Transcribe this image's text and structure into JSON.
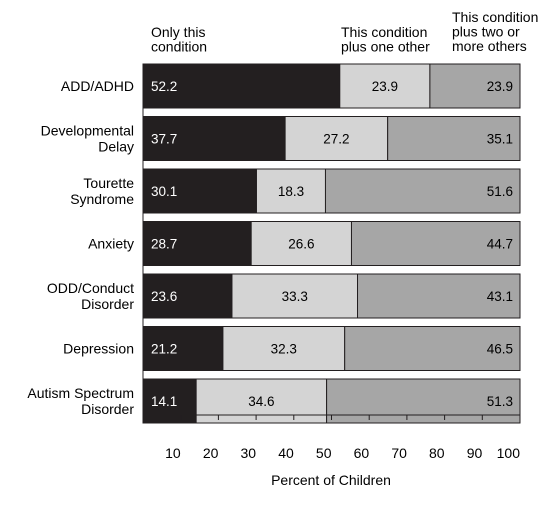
{
  "chart_data": {
    "type": "bar",
    "orientation": "horizontal",
    "stacked": true,
    "categories": [
      "ADD/ADHD",
      "Developmental Delay",
      "Tourette Syndrome",
      "Anxiety",
      "ODD/Conduct Disorder",
      "Depression",
      "Autism Spectrum Disorder"
    ],
    "category_lines": [
      [
        "ADD/ADHD"
      ],
      [
        "Developmental",
        "Delay"
      ],
      [
        "Tourette",
        "Syndrome"
      ],
      [
        "Anxiety"
      ],
      [
        "ODD/Conduct",
        "Disorder"
      ],
      [
        "Depression"
      ],
      [
        "Autism Spectrum",
        "Disorder"
      ]
    ],
    "series": [
      {
        "name": "Only this condition",
        "header_lines": [
          "Only this",
          "condition"
        ],
        "color": "#231f20",
        "label_color": "#ffffff",
        "values": [
          52.2,
          37.7,
          30.1,
          28.7,
          23.6,
          21.2,
          14.1
        ],
        "labels": [
          "52.2",
          "37.7",
          "30.1",
          "28.7",
          "23.6",
          "21.2",
          "14.1"
        ]
      },
      {
        "name": "This condition plus one other",
        "header_lines": [
          "This condition",
          "plus one other"
        ],
        "color": "#d4d4d4",
        "label_color": "#000000",
        "values": [
          23.9,
          27.2,
          18.3,
          26.6,
          33.3,
          32.3,
          34.6
        ],
        "labels": [
          "23.9",
          "27.2",
          "18.3",
          "26.6",
          "33.3",
          "32.3",
          "34.6"
        ]
      },
      {
        "name": "This condition plus two or more others",
        "header_lines": [
          "This condition",
          "plus two or",
          "more others"
        ],
        "color": "#a6a6a6",
        "label_color": "#000000",
        "values": [
          23.9,
          35.1,
          51.6,
          44.7,
          43.1,
          46.5,
          51.3
        ],
        "labels": [
          "23.9",
          "35.1",
          "51.6",
          "44.7",
          "43.1",
          "46.5",
          "51.3"
        ]
      }
    ],
    "xlabel": "Percent of Children",
    "ylabel": "",
    "title": "",
    "xlim": [
      0,
      100
    ],
    "xticks": [
      10,
      20,
      30,
      40,
      50,
      60,
      70,
      80,
      90,
      100
    ],
    "xtick_labels": [
      "10",
      "20",
      "30",
      "40",
      "50",
      "60",
      "70",
      "80",
      "90",
      "100"
    ],
    "grid": false,
    "legend": "column headers above bars"
  }
}
